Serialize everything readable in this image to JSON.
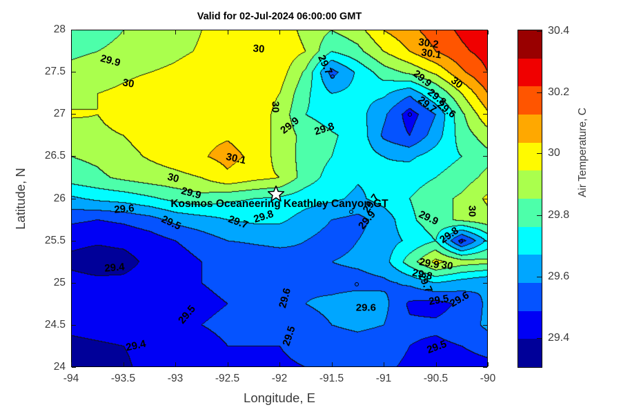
{
  "title": "Valid for 02-Jul-2024 06:00:00 GMT",
  "axes": {
    "x_label": "Longitude, E",
    "y_label": "Latitude, N",
    "x_range": [
      -94,
      -90
    ],
    "y_range": [
      24,
      28
    ],
    "x_ticks": [
      {
        "label": "-94",
        "v": -94
      },
      {
        "label": "-93.5",
        "v": -93.5
      },
      {
        "label": "-93",
        "v": -93
      },
      {
        "label": "-92.5",
        "v": -92.5
      },
      {
        "label": "-92",
        "v": -92
      },
      {
        "label": "-91.5",
        "v": -91.5
      },
      {
        "label": "-91",
        "v": -91
      },
      {
        "label": "-90.5",
        "v": -90.5
      },
      {
        "label": "-90",
        "v": -90
      }
    ],
    "y_ticks": [
      {
        "label": "28",
        "v": 28
      },
      {
        "label": "27.5",
        "v": 27.5
      },
      {
        "label": "27",
        "v": 27
      },
      {
        "label": "26.5",
        "v": 26.5
      },
      {
        "label": "26",
        "v": 26
      },
      {
        "label": "25.5",
        "v": 25.5
      },
      {
        "label": "25",
        "v": 25
      },
      {
        "label": "24.5",
        "v": 24.5
      },
      {
        "label": "24",
        "v": 24
      }
    ]
  },
  "station": {
    "name": "Kosmos Oceaneering Keathley Canyon GT",
    "star_lon": -92.03,
    "star_lat": 26.06,
    "label_lon": -92.0,
    "label_lat": 25.93
  },
  "colorbar": {
    "label": "Air Temperature, C",
    "ticks": [
      {
        "label": "30.4",
        "f": 0.004
      },
      {
        "label": "30.2",
        "f": 0.185
      },
      {
        "label": "30",
        "f": 0.366
      },
      {
        "label": "29.8",
        "f": 0.549
      },
      {
        "label": "29.6",
        "f": 0.731
      },
      {
        "label": "29.4",
        "f": 0.912
      }
    ]
  },
  "chart_data": {
    "type": "filled_contour",
    "title": "Valid for 02-Jul-2024 06:00:00 GMT",
    "xlabel": "Longitude, E",
    "ylabel": "Latitude, N",
    "colorbar_label": "Air Temperature, C",
    "xlim": [
      -94,
      -90
    ],
    "ylim": [
      24,
      28
    ],
    "level_base": 29.3,
    "level_step": 0.1,
    "palette": [
      "#000099",
      "#0000F5",
      "#0553FF",
      "#00A6FF",
      "#02FCFF",
      "#4DFFAA",
      "#AAFF4D",
      "#FFFA00",
      "#FFA800",
      "#FF5500",
      "#F00000",
      "#990000"
    ],
    "line_color": "#101010",
    "grid_lons": [
      -94,
      -93.75,
      -93.5,
      -93.25,
      -93,
      -92.75,
      -92.5,
      -92.25,
      -92,
      -91.75,
      -91.5,
      -91.25,
      -91,
      -90.75,
      -90.5,
      -90.25,
      -90
    ],
    "grid_lats": [
      28,
      27.75,
      27.5,
      27.25,
      27,
      26.75,
      26.5,
      26.25,
      26,
      25.75,
      25.5,
      25.25,
      25,
      24.75,
      24.5,
      24.25,
      24
    ],
    "grid": [
      [
        29.85,
        29.87,
        29.9,
        29.93,
        29.96,
        30.0,
        30.03,
        30.05,
        30.06,
        29.97,
        29.9,
        29.96,
        30.1,
        30.17,
        30.25,
        30.32,
        30.38
      ],
      [
        29.88,
        29.9,
        29.92,
        29.95,
        29.98,
        30.01,
        30.04,
        30.05,
        30.07,
        30.0,
        29.8,
        29.87,
        30.0,
        30.1,
        30.2,
        30.28,
        30.34
      ],
      [
        29.93,
        29.95,
        29.98,
        30.0,
        30.02,
        30.05,
        30.05,
        30.06,
        30.05,
        29.88,
        29.56,
        29.72,
        29.85,
        29.92,
        30.02,
        30.18,
        30.3
      ],
      [
        29.97,
        30.0,
        30.02,
        30.05,
        30.07,
        30.07,
        30.07,
        30.07,
        30.0,
        29.82,
        29.7,
        29.73,
        29.72,
        29.62,
        29.8,
        30.0,
        30.2
      ],
      [
        30.01,
        30.0,
        30.04,
        30.06,
        30.08,
        30.08,
        30.08,
        30.08,
        29.96,
        29.8,
        29.76,
        29.74,
        29.62,
        29.45,
        29.6,
        29.88,
        30.08
      ],
      [
        29.95,
        29.98,
        30.0,
        30.04,
        30.07,
        30.08,
        30.09,
        30.06,
        29.97,
        29.86,
        29.81,
        29.77,
        29.58,
        29.5,
        29.65,
        29.85,
        29.95
      ],
      [
        29.9,
        29.92,
        29.97,
        30.01,
        30.05,
        30.09,
        30.13,
        30.08,
        29.96,
        29.86,
        29.8,
        29.76,
        29.7,
        29.68,
        29.75,
        29.8,
        29.87
      ],
      [
        29.85,
        29.88,
        29.92,
        29.95,
        29.97,
        30.0,
        30.08,
        30.03,
        30.0,
        29.85,
        29.76,
        29.71,
        29.72,
        29.76,
        29.8,
        29.85,
        29.93
      ],
      [
        29.68,
        29.72,
        29.74,
        29.78,
        29.83,
        29.86,
        29.82,
        29.8,
        29.78,
        29.74,
        29.72,
        29.68,
        29.74,
        29.8,
        29.86,
        29.92,
        30.02
      ],
      [
        29.52,
        29.5,
        29.52,
        29.56,
        29.63,
        29.66,
        29.7,
        29.72,
        29.72,
        29.66,
        29.6,
        29.57,
        29.64,
        29.78,
        29.86,
        29.92,
        29.96
      ],
      [
        29.42,
        29.41,
        29.42,
        29.45,
        29.5,
        29.55,
        29.6,
        29.61,
        29.62,
        29.6,
        29.56,
        29.6,
        29.65,
        29.72,
        29.8,
        29.46,
        29.72
      ],
      [
        29.38,
        29.36,
        29.37,
        29.42,
        29.45,
        29.5,
        29.52,
        29.55,
        29.56,
        29.58,
        29.6,
        29.62,
        29.66,
        29.85,
        30.03,
        29.95,
        29.93
      ],
      [
        29.43,
        29.42,
        29.42,
        29.44,
        29.46,
        29.5,
        29.52,
        29.55,
        29.56,
        29.58,
        29.56,
        29.56,
        29.58,
        29.62,
        29.7,
        29.65,
        29.6
      ],
      [
        29.42,
        29.42,
        29.43,
        29.44,
        29.45,
        29.48,
        29.5,
        29.52,
        29.55,
        29.6,
        29.63,
        29.67,
        29.63,
        29.48,
        29.46,
        29.52,
        29.62
      ],
      [
        29.42,
        29.43,
        29.44,
        29.45,
        29.46,
        29.5,
        29.52,
        29.53,
        29.52,
        29.55,
        29.6,
        29.62,
        29.6,
        29.52,
        29.52,
        29.55,
        29.62
      ],
      [
        29.38,
        29.39,
        29.4,
        29.42,
        29.45,
        29.47,
        29.5,
        29.5,
        29.5,
        29.52,
        29.55,
        29.56,
        29.55,
        29.5,
        29.48,
        29.5,
        29.55
      ],
      [
        29.36,
        29.37,
        29.39,
        29.42,
        29.44,
        29.46,
        29.48,
        29.49,
        29.49,
        29.5,
        29.52,
        29.53,
        29.52,
        29.48,
        29.44,
        29.44,
        29.46
      ]
    ],
    "contour_labels": [
      {
        "t": "29.9",
        "lon": -93.62,
        "lat": 27.63,
        "r": 15
      },
      {
        "t": "30",
        "lon": -93.45,
        "lat": 27.36,
        "r": 10
      },
      {
        "t": "30",
        "lon": -92.2,
        "lat": 27.77,
        "r": 5
      },
      {
        "t": "30",
        "lon": -92.04,
        "lat": 27.08,
        "r": 90
      },
      {
        "t": "29.7",
        "lon": -91.56,
        "lat": 27.58,
        "r": 65
      },
      {
        "t": "29.9",
        "lon": -91.9,
        "lat": 26.86,
        "r": -38
      },
      {
        "t": "29.8",
        "lon": -91.57,
        "lat": 26.82,
        "r": -18
      },
      {
        "t": "30.2",
        "lon": -90.57,
        "lat": 27.84,
        "r": 8
      },
      {
        "t": "30.1",
        "lon": -90.54,
        "lat": 27.71,
        "r": 8
      },
      {
        "t": "29.9",
        "lon": -90.63,
        "lat": 27.42,
        "r": 38
      },
      {
        "t": "30",
        "lon": -90.3,
        "lat": 27.37,
        "r": 38
      },
      {
        "t": "29.8",
        "lon": -90.49,
        "lat": 27.2,
        "r": 38
      },
      {
        "t": "29.7",
        "lon": -90.58,
        "lat": 27.11,
        "r": 38
      },
      {
        "t": "29.6",
        "lon": -90.4,
        "lat": 27.05,
        "r": 38
      },
      {
        "t": "30.1",
        "lon": -92.42,
        "lat": 26.47,
        "r": 12
      },
      {
        "t": "30",
        "lon": -93.02,
        "lat": 26.24,
        "r": 14
      },
      {
        "t": "29.9",
        "lon": -92.85,
        "lat": 26.06,
        "r": 15
      },
      {
        "t": "29.6",
        "lon": -93.49,
        "lat": 25.87,
        "r": -5
      },
      {
        "t": "29.5",
        "lon": -93.04,
        "lat": 25.71,
        "r": 25
      },
      {
        "t": "29.7",
        "lon": -92.4,
        "lat": 25.72,
        "r": 20
      },
      {
        "t": "29.8",
        "lon": -92.15,
        "lat": 25.78,
        "r": -18
      },
      {
        "t": "29.9",
        "lon": -91.16,
        "lat": 25.74,
        "r": -50
      },
      {
        "t": "29.7",
        "lon": -91.12,
        "lat": 25.94,
        "r": -55
      },
      {
        "t": "29.4",
        "lon": -93.58,
        "lat": 25.18,
        "r": -5
      },
      {
        "t": "29.4",
        "lon": -93.38,
        "lat": 24.25,
        "r": -12
      },
      {
        "t": "29.5",
        "lon": -92.89,
        "lat": 24.62,
        "r": -50
      },
      {
        "t": "29.6",
        "lon": -91.95,
        "lat": 24.82,
        "r": -75
      },
      {
        "t": "29.5",
        "lon": -91.91,
        "lat": 24.37,
        "r": -72
      },
      {
        "t": "29.6",
        "lon": -91.17,
        "lat": 24.7,
        "r": 0
      },
      {
        "t": "29.9",
        "lon": -90.57,
        "lat": 25.77,
        "r": 25
      },
      {
        "t": "30",
        "lon": -90.15,
        "lat": 25.85,
        "r": 90
      },
      {
        "t": "29.8",
        "lon": -90.37,
        "lat": 25.56,
        "r": -35
      },
      {
        "t": "29.9",
        "lon": -90.56,
        "lat": 25.23,
        "r": 10
      },
      {
        "t": "30",
        "lon": -90.39,
        "lat": 25.2,
        "r": 10
      },
      {
        "t": "29.8",
        "lon": -90.63,
        "lat": 25.1,
        "r": 12
      },
      {
        "t": "29.7",
        "lon": -90.6,
        "lat": 25.0,
        "r": 65
      },
      {
        "t": "29.6",
        "lon": -90.27,
        "lat": 24.8,
        "r": -30
      },
      {
        "t": "29.5",
        "lon": -90.47,
        "lat": 24.79,
        "r": -10
      },
      {
        "t": "29.5",
        "lon": -90.49,
        "lat": 24.24,
        "r": -20
      }
    ],
    "minima_dots": [
      {
        "lon": -90.75,
        "lat": 26.99
      },
      {
        "lon": -91.49,
        "lat": 27.44
      },
      {
        "lon": -91.31,
        "lat": 25.84
      },
      {
        "lon": -91.26,
        "lat": 24.98
      },
      {
        "lon": -90.26,
        "lat": 25.49
      }
    ]
  }
}
